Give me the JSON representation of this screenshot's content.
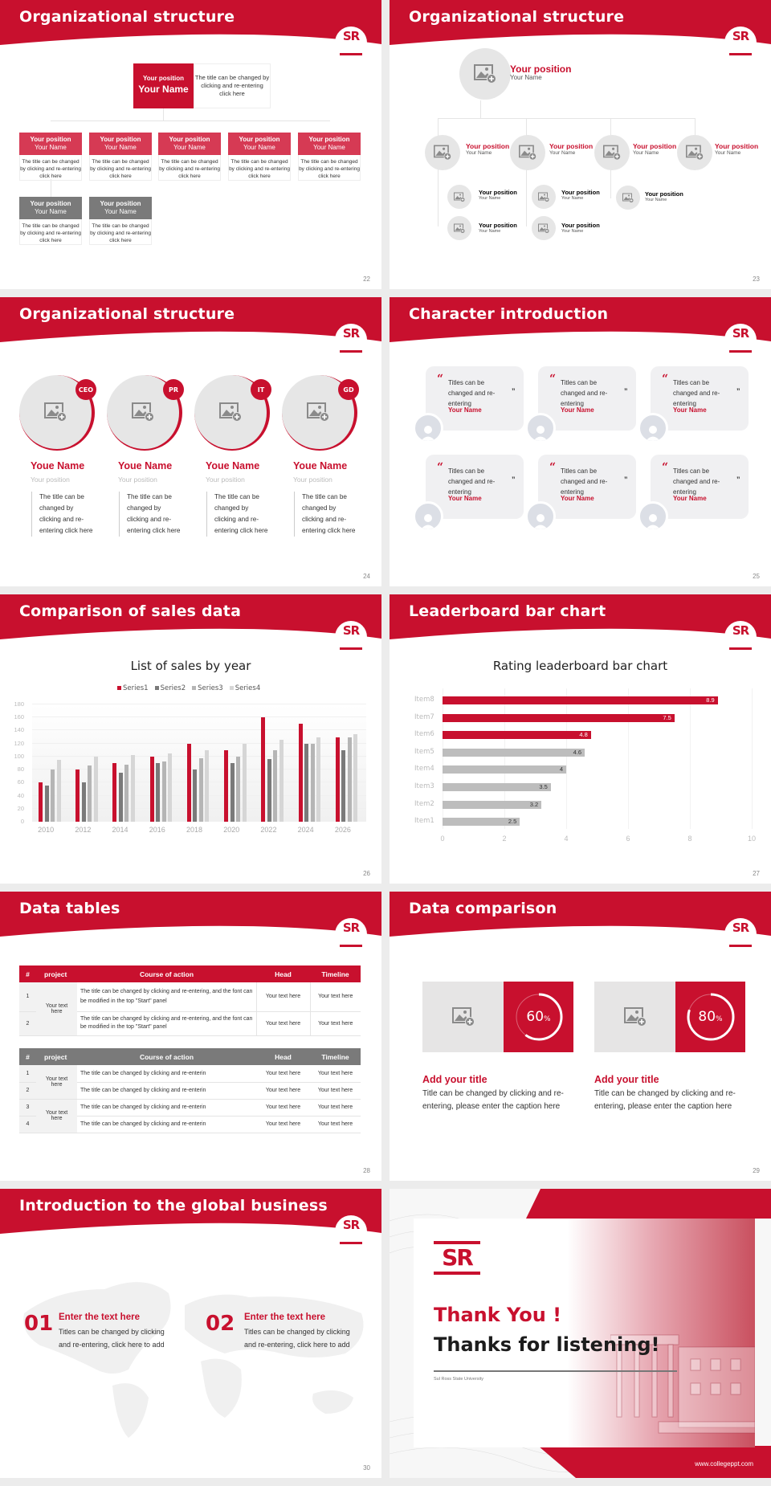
{
  "colors": {
    "brand_red": "#c8102e",
    "header_gray": "#7a7a7a",
    "placeholder_gray": "#e6e6e6"
  },
  "logo": {
    "text": "SR"
  },
  "slides": {
    "s22": {
      "title": "Organizational structure",
      "page": "22",
      "top": {
        "position": "Your position",
        "name": "Your Name",
        "desc": "The title can be changed by clicking and re-entering click here"
      },
      "row1": [
        {
          "position": "Your position",
          "name": "Your Name",
          "desc": "The title can be changed by clicking and re-entering click here"
        },
        {
          "position": "Your position",
          "name": "Your Name",
          "desc": "The title can be changed by clicking and re-entering click here"
        },
        {
          "position": "Your position",
          "name": "Your Name",
          "desc": "The title can be changed by clicking and re-entering click here"
        },
        {
          "position": "Your position",
          "name": "Your Name",
          "desc": "The title can be changed by clicking and re-entering click here"
        },
        {
          "position": "Your position",
          "name": "Your Name",
          "desc": "The title can be changed by clicking and re-entering click here"
        }
      ],
      "row2": [
        {
          "position": "Your position",
          "name": "Your Name",
          "desc": "The title can be changed by clicking and re-entering click here"
        },
        {
          "position": "Your position",
          "name": "Your Name",
          "desc": "The title can be changed by clicking and re-entering click here"
        }
      ]
    },
    "s23": {
      "title": "Organizational structure",
      "page": "23",
      "top": {
        "position": "Your position",
        "name": "Your Name"
      },
      "level1": [
        {
          "position": "Your position",
          "name": "Your Name"
        },
        {
          "position": "Your position",
          "name": "Your Name"
        },
        {
          "position": "Your position",
          "name": "Your Name"
        },
        {
          "position": "Your position",
          "name": "Your Name"
        }
      ],
      "level2": [
        {
          "position": "Your position",
          "name": "Your Name"
        },
        {
          "position": "Your position",
          "name": "Your Name"
        },
        {
          "position": "Your position",
          "name": "Your Name"
        },
        {
          "position": "Your position",
          "name": "Your Name"
        },
        {
          "position": "Your position",
          "name": "Your Name"
        }
      ]
    },
    "s24": {
      "title": "Organizational structure",
      "page": "24",
      "people": [
        {
          "badge": "CEO",
          "name": "Youe Name",
          "position": "Your position",
          "desc": "The title can be changed by clicking and re-entering click here"
        },
        {
          "badge": "PR",
          "name": "Youe Name",
          "position": "Your position",
          "desc": "The title can be changed by clicking and re-entering click here"
        },
        {
          "badge": "IT",
          "name": "Youe Name",
          "position": "Your position",
          "desc": "The title can be changed by clicking and re-entering click here"
        },
        {
          "badge": "GD",
          "name": "Youe Name",
          "position": "Your position",
          "desc": "The title can be changed by clicking and re-entering click here"
        }
      ]
    },
    "s25": {
      "title": "Character introduction",
      "page": "25",
      "quotes": [
        {
          "text": "Titles can be changed and re-entering",
          "name": "Your Name"
        },
        {
          "text": "Titles can be changed and re-entering",
          "name": "Your Name"
        },
        {
          "text": "Titles can be changed and re-entering",
          "name": "Your Name"
        },
        {
          "text": "Titles can be changed and re-entering",
          "name": "Your Name"
        },
        {
          "text": "Titles can be changed and re-entering",
          "name": "Your Name"
        },
        {
          "text": "Titles can be changed and re-entering",
          "name": "Your Name"
        }
      ],
      "open_quote": "“",
      "close_quote": "”"
    },
    "s26": {
      "title": "Comparison of sales data",
      "page": "26"
    },
    "s27": {
      "title": "Leaderboard bar chart",
      "page": "27"
    },
    "s28": {
      "title": "Data tables",
      "page": "28",
      "table1": {
        "headers": [
          "#",
          "project",
          "Course of action",
          "Head",
          "Timeline"
        ],
        "project": "Your text here",
        "rows": [
          {
            "n": "1",
            "action": "The title can be changed by clicking and re-entering, and the font can be modified in the top \"Start\" panel",
            "head": "Your text here",
            "timeline": "Your text here"
          },
          {
            "n": "2",
            "action": "The title can be changed by clicking and re-entering, and the font can be modified in the top \"Start\" panel",
            "head": "Your text here",
            "timeline": "Your text here"
          }
        ]
      },
      "table2": {
        "headers": [
          "#",
          "project",
          "Course of action",
          "Head",
          "Timeline"
        ],
        "projects": [
          "Your text here",
          "Your text here"
        ],
        "rows": [
          {
            "n": "1",
            "action": "The title can be changed by clicking and re-enterin",
            "head": "Your text here",
            "timeline": "Your text here"
          },
          {
            "n": "2",
            "action": "The title can be changed by clicking and re-enterin",
            "head": "Your text here",
            "timeline": "Your text here"
          },
          {
            "n": "3",
            "action": "The title can be changed by clicking and re-enterin",
            "head": "Your text here",
            "timeline": "Your text here"
          },
          {
            "n": "4",
            "action": "The title can be changed by clicking and re-enterin",
            "head": "Your text here",
            "timeline": "Your text here"
          }
        ]
      }
    },
    "s29": {
      "title": "Data comparison",
      "page": "29",
      "items": [
        {
          "percent": "60",
          "unit": "%",
          "title": "Add your title",
          "desc": "Title can be changed by clicking and re-entering, please enter the caption here"
        },
        {
          "percent": "80",
          "unit": "%",
          "title": "Add your title",
          "desc": "Title can be changed by clicking and re-entering, please enter the caption here"
        }
      ]
    },
    "s30": {
      "title": "Introduction to the global business",
      "page": "30",
      "items": [
        {
          "num": "01",
          "title": "Enter the text here",
          "desc": "Titles can be changed by clicking and re-entering, click here to add"
        },
        {
          "num": "02",
          "title": "Enter the text here",
          "desc": "Titles can be changed by clicking and re-entering, click here to add"
        }
      ]
    },
    "s31": {
      "thank_you": "Thank You !",
      "thanks": "Thanks for listening!",
      "university": "Sul Ross State University",
      "website": "www.collegeppt.com"
    }
  },
  "chart_data": [
    {
      "type": "bar",
      "title": "List of sales by year",
      "xlabel": "",
      "ylabel": "",
      "categories": [
        "2010",
        "2012",
        "2014",
        "2016",
        "2018",
        "2020",
        "2022",
        "2024",
        "2026"
      ],
      "series": [
        {
          "name": "Series1",
          "color": "#c8102e",
          "values": [
            60,
            80,
            90,
            100,
            120,
            110,
            160,
            150,
            130
          ]
        },
        {
          "name": "Series2",
          "color": "#7a7a7a",
          "values": [
            55,
            60,
            75,
            90,
            80,
            90,
            96,
            120,
            110
          ]
        },
        {
          "name": "Series3",
          "color": "#b5b5b5",
          "values": [
            80,
            86,
            88,
            92,
            98,
            100,
            110,
            120,
            130
          ]
        },
        {
          "name": "Series4",
          "color": "#d6d6d6",
          "values": [
            95,
            100,
            102,
            105,
            110,
            120,
            126,
            130,
            135
          ]
        }
      ],
      "ylim": [
        0,
        180
      ],
      "yticks": [
        "0",
        "20",
        "40",
        "60",
        "80",
        "100",
        "120",
        "140",
        "160",
        "180"
      ],
      "grid": true,
      "legend_position": "top"
    },
    {
      "type": "bar",
      "orientation": "horizontal",
      "title": "Rating leaderboard bar chart",
      "categories": [
        "Item8",
        "Item7",
        "Item6",
        "Item5",
        "Item4",
        "Item3",
        "Item2",
        "Item1"
      ],
      "values": [
        8.9,
        7.5,
        4.8,
        4.6,
        4,
        3.5,
        3.2,
        2.5
      ],
      "labels": [
        "8.9",
        "7.5",
        "4.8",
        "4.6",
        "4",
        "3.5",
        "3.2",
        "2.5"
      ],
      "colors": [
        "#c8102e",
        "#c8102e",
        "#c8102e",
        "#bdbdbd",
        "#bdbdbd",
        "#bdbdbd",
        "#bdbdbd",
        "#bdbdbd"
      ],
      "xlim": [
        0,
        10
      ],
      "xticks": [
        "0",
        "2",
        "4",
        "6",
        "8",
        "10"
      ],
      "grid": true
    }
  ]
}
